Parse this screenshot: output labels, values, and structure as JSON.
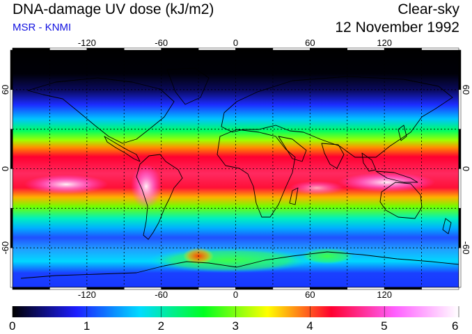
{
  "header": {
    "title": "DNA-damage UV dose (kJ/m2)",
    "subtitle": "MSR - KNMI",
    "condition": "Clear-sky",
    "date": "12 November 1992"
  },
  "map": {
    "projection": "equirectangular",
    "lon_range": [
      -180,
      180
    ],
    "lat_range": [
      -90,
      90
    ],
    "grid_spacing_deg": 30,
    "lon_tick_labels": [
      "-120",
      "-60",
      "0",
      "60",
      "120"
    ],
    "lon_tick_values": [
      -120,
      -60,
      0,
      60,
      120
    ],
    "lat_tick_labels": [
      "60",
      "0",
      "-60"
    ],
    "lat_tick_values": [
      60,
      0,
      -60
    ]
  },
  "colorbar": {
    "min": 0,
    "max": 6,
    "labels": [
      "0",
      "1",
      "2",
      "3",
      "4",
      "5",
      "6"
    ],
    "colors": [
      "#000000",
      "#1d1dff",
      "#00dcff",
      "#00ff20",
      "#ffff00",
      "#ff0030",
      "#ff60ff",
      "#ffffff"
    ]
  }
}
